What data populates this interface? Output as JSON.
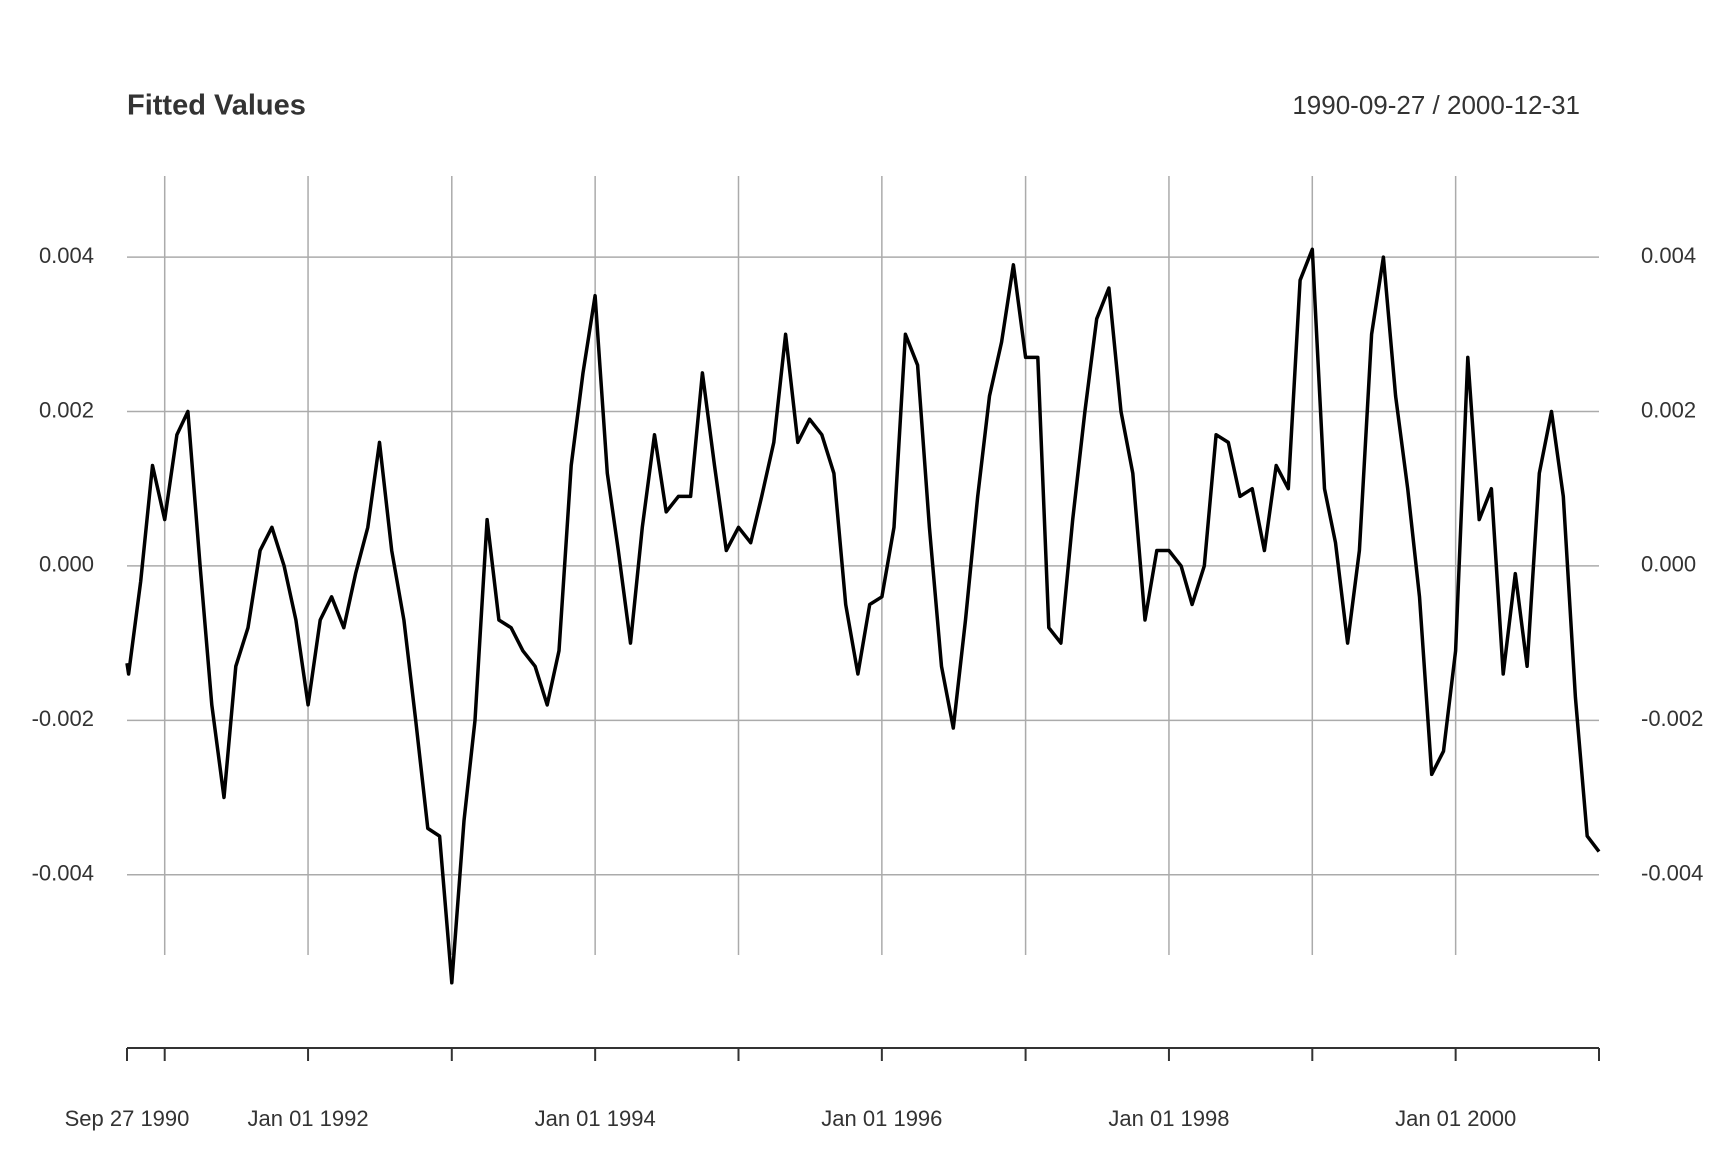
{
  "chart_data": {
    "type": "line",
    "title": "Fitted Values",
    "date_range": "1990-09-27 / 2000-12-31",
    "x": [
      "1990-09-27",
      "1990-10-01",
      "1990-11-01",
      "1990-12-01",
      "1991-01-01",
      "1991-02-01",
      "1991-03-01",
      "1991-04-01",
      "1991-05-01",
      "1991-06-01",
      "1991-07-01",
      "1991-08-01",
      "1991-09-01",
      "1991-10-01",
      "1991-11-01",
      "1991-12-01",
      "1992-01-01",
      "1992-02-01",
      "1992-03-01",
      "1992-04-01",
      "1992-05-01",
      "1992-06-01",
      "1992-07-01",
      "1992-08-01",
      "1992-09-01",
      "1992-10-01",
      "1992-11-01",
      "1992-12-01",
      "1993-01-01",
      "1993-02-01",
      "1993-03-01",
      "1993-04-01",
      "1993-05-01",
      "1993-06-01",
      "1993-07-01",
      "1993-08-01",
      "1993-09-01",
      "1993-10-01",
      "1993-11-01",
      "1993-12-01",
      "1994-01-01",
      "1994-02-01",
      "1994-03-01",
      "1994-04-01",
      "1994-05-01",
      "1994-06-01",
      "1994-07-01",
      "1994-08-01",
      "1994-09-01",
      "1994-10-01",
      "1994-11-01",
      "1994-12-01",
      "1995-01-01",
      "1995-02-01",
      "1995-03-01",
      "1995-04-01",
      "1995-05-01",
      "1995-06-01",
      "1995-07-01",
      "1995-08-01",
      "1995-09-01",
      "1995-10-01",
      "1995-11-01",
      "1995-12-01",
      "1996-01-01",
      "1996-02-01",
      "1996-03-01",
      "1996-04-01",
      "1996-05-01",
      "1996-06-01",
      "1996-07-01",
      "1996-08-01",
      "1996-09-01",
      "1996-10-01",
      "1996-11-01",
      "1996-12-01",
      "1997-01-01",
      "1997-02-01",
      "1997-03-01",
      "1997-04-01",
      "1997-05-01",
      "1997-06-01",
      "1997-07-01",
      "1997-08-01",
      "1997-09-01",
      "1997-10-01",
      "1997-11-01",
      "1997-12-01",
      "1998-01-01",
      "1998-02-01",
      "1998-03-01",
      "1998-04-01",
      "1998-05-01",
      "1998-06-01",
      "1998-07-01",
      "1998-08-01",
      "1998-09-01",
      "1998-10-01",
      "1998-11-01",
      "1998-12-01",
      "1999-01-01",
      "1999-02-01",
      "1999-03-01",
      "1999-04-01",
      "1999-05-01",
      "1999-06-01",
      "1999-07-01",
      "1999-08-01",
      "1999-09-01",
      "1999-10-01",
      "1999-11-01",
      "1999-12-01",
      "2000-01-01",
      "2000-02-01",
      "2000-03-01",
      "2000-04-01",
      "2000-05-01",
      "2000-06-01",
      "2000-07-01",
      "2000-08-01",
      "2000-09-01",
      "2000-10-01",
      "2000-11-01",
      "2000-12-01",
      "2000-12-31"
    ],
    "series": [
      {
        "color": "#000000",
        "values": [
          -0.00126,
          -0.0014,
          -0.0002,
          0.0013,
          0.0006,
          0.0017,
          0.002,
          0.0,
          -0.0018,
          -0.003,
          -0.0013,
          -0.0008,
          0.0002,
          0.0005,
          0.0,
          -0.0007,
          -0.0018,
          -0.0007,
          -0.0004,
          -0.0008,
          -0.0001,
          0.0005,
          0.0016,
          0.0002,
          -0.0007,
          -0.002,
          -0.0034,
          -0.0035,
          -0.0054,
          -0.0033,
          -0.002,
          0.0006,
          -0.0007,
          -0.0008,
          -0.0011,
          -0.0013,
          -0.0018,
          -0.0011,
          0.0013,
          0.0025,
          0.0035,
          0.0012,
          0.0002,
          -0.001,
          0.0005,
          0.0017,
          0.0007,
          0.0009,
          0.0009,
          0.0025,
          0.0013,
          0.0002,
          0.0005,
          0.0003,
          0.0009,
          0.0016,
          0.003,
          0.0016,
          0.0019,
          0.0017,
          0.0012,
          -0.0005,
          -0.0014,
          -0.0005,
          -0.0004,
          0.0005,
          0.003,
          0.0026,
          0.0005,
          -0.0013,
          -0.0021,
          -0.0007,
          0.0009,
          0.0022,
          0.0029,
          0.0039,
          0.0027,
          0.0027,
          -0.0008,
          -0.001,
          0.0006,
          0.002,
          0.0032,
          0.0036,
          0.002,
          0.0012,
          -0.0007,
          0.0002,
          0.0002,
          0.0,
          -0.0005,
          0.0,
          0.0017,
          0.0016,
          0.0009,
          0.001,
          0.0002,
          0.0013,
          0.001,
          0.0037,
          0.0041,
          0.001,
          0.0003,
          -0.001,
          0.0002,
          0.003,
          0.004,
          0.0022,
          0.001,
          -0.0004,
          -0.0027,
          -0.0024,
          -0.0011,
          0.0027,
          0.0006,
          0.001,
          -0.0014,
          -0.0001,
          -0.0013,
          0.0012,
          0.002,
          0.0009,
          -0.0017,
          -0.0035,
          -0.0037
        ]
      }
    ],
    "xlim": [
      "1990-09-27",
      "2000-12-31"
    ],
    "xticks": [
      {
        "value": "1990-09-27",
        "label": "Sep 27 1990"
      },
      {
        "value": "1991-01-01",
        "label": null
      },
      {
        "value": "1992-01-01",
        "label": "Jan 01 1992"
      },
      {
        "value": "1993-01-01",
        "label": null
      },
      {
        "value": "1994-01-01",
        "label": "Jan 01 1994"
      },
      {
        "value": "1995-01-01",
        "label": null
      },
      {
        "value": "1996-01-01",
        "label": "Jan 01 1996"
      },
      {
        "value": "1997-01-01",
        "label": null
      },
      {
        "value": "1998-01-01",
        "label": "Jan 01 1998"
      },
      {
        "value": "1999-01-01",
        "label": null
      },
      {
        "value": "2000-01-01",
        "label": "Jan 01 2000"
      },
      {
        "value": "2000-12-31",
        "label": null
      }
    ],
    "ylim": [
      -0.0057,
      0.00505
    ],
    "yticks": [
      -0.004,
      -0.002,
      {
        "value": 0,
        "label": "0.000"
      },
      0.002,
      0.004
    ],
    "grid": true
  }
}
